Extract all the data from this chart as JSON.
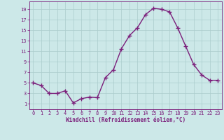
{
  "x": [
    0,
    1,
    2,
    3,
    4,
    5,
    6,
    7,
    8,
    9,
    10,
    11,
    12,
    13,
    14,
    15,
    16,
    17,
    18,
    19,
    20,
    21,
    22,
    23
  ],
  "y": [
    5,
    4.5,
    3,
    3,
    3.5,
    1.2,
    2,
    2.3,
    2.2,
    6,
    7.5,
    11.5,
    14,
    15.5,
    18,
    19.2,
    19,
    18.5,
    15.5,
    12,
    8.5,
    6.5,
    5.5,
    5.5
  ],
  "line_color": "#7b1f7b",
  "marker": "+",
  "marker_size": 4,
  "bg_color": "#cce8e8",
  "grid_color": "#aacccc",
  "xlabel": "Windchill (Refroidissement éolien,°C)",
  "xlim_min": -0.5,
  "xlim_max": 23.5,
  "ylim_min": 0,
  "ylim_max": 20.5,
  "xticks": [
    0,
    1,
    2,
    3,
    4,
    5,
    6,
    7,
    8,
    9,
    10,
    11,
    12,
    13,
    14,
    15,
    16,
    17,
    18,
    19,
    20,
    21,
    22,
    23
  ],
  "yticks": [
    1,
    3,
    5,
    7,
    9,
    11,
    13,
    15,
    17,
    19
  ],
  "tick_color": "#7b1f7b",
  "label_color": "#7b1f7b",
  "spine_color": "#7b1f7b",
  "tick_fontsize": 5,
  "xlabel_fontsize": 5.5,
  "linewidth": 1.0,
  "markeredgewidth": 1.0
}
